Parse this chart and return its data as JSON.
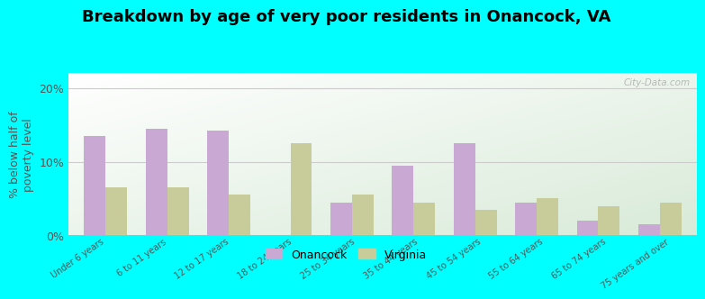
{
  "title": "Breakdown by age of very poor residents in Onancock, VA",
  "categories": [
    "Under 6 years",
    "6 to 11 years",
    "12 to 17 years",
    "18 to 24 years",
    "25 to 34 years",
    "35 to 44 years",
    "45 to 54 years",
    "55 to 64 years",
    "65 to 74 years",
    "75 years and over"
  ],
  "onancock_values": [
    13.5,
    14.5,
    14.2,
    0.0,
    4.5,
    9.5,
    12.5,
    4.5,
    2.0,
    1.5
  ],
  "virginia_values": [
    6.5,
    6.5,
    5.5,
    12.5,
    5.5,
    4.5,
    3.5,
    5.0,
    4.0,
    4.5
  ],
  "onancock_color": "#c9a8d4",
  "virginia_color": "#c8cc9a",
  "ylabel": "% below half of\npoverty level",
  "ylim": [
    0,
    22
  ],
  "yticks": [
    0,
    10,
    20
  ],
  "ytick_labels": [
    "0%",
    "10%",
    "20%"
  ],
  "outer_background": "#00ffff",
  "bar_width": 0.35,
  "legend_labels": [
    "Onancock",
    "Virginia"
  ],
  "watermark": "City-Data.com",
  "title_fontsize": 13,
  "axis_label_fontsize": 9
}
